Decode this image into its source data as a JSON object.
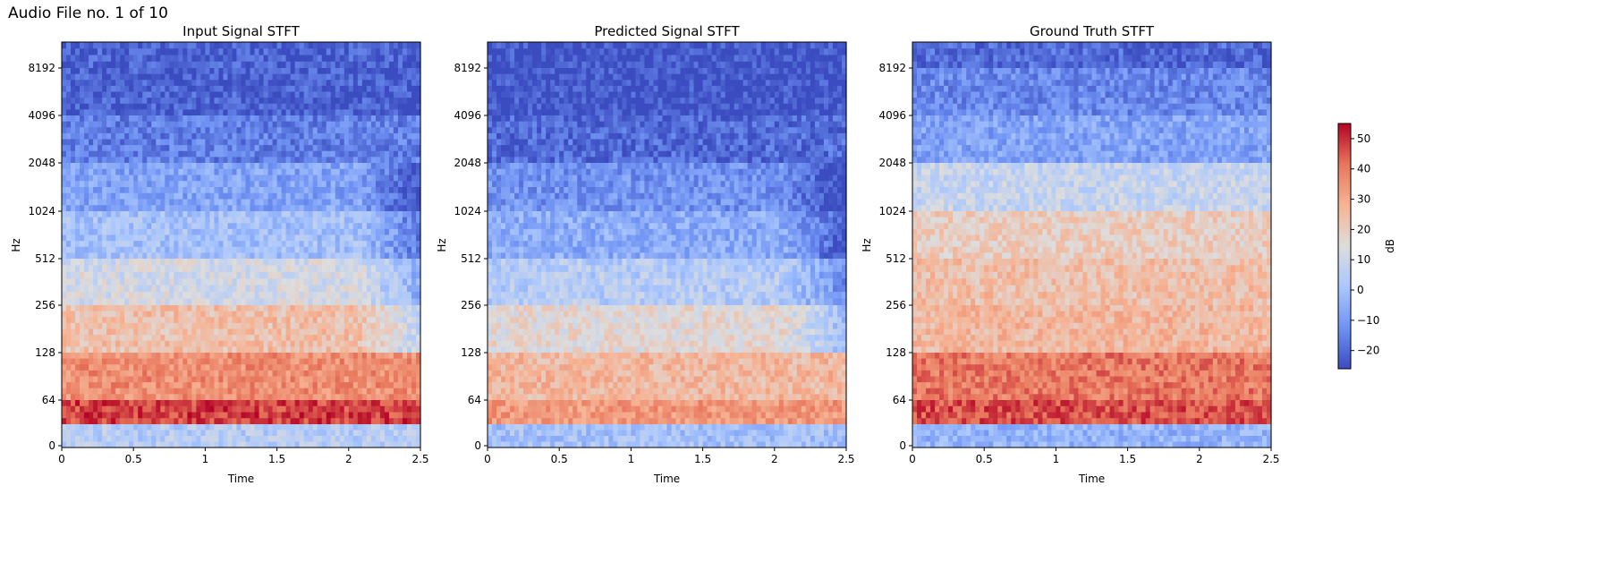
{
  "figure": {
    "suptitle": "Audio File no. 1 of 10"
  },
  "chart_data": [
    {
      "type": "heatmap",
      "title": "Input Signal STFT",
      "xlabel": "Time",
      "ylabel": "Hz",
      "x_ticks": [
        "0",
        "0.5",
        "1",
        "1.5",
        "2",
        "2.5"
      ],
      "x_tick_values": [
        0,
        0.5,
        1,
        1.5,
        2,
        2.5
      ],
      "xlim": [
        0,
        2.5
      ],
      "y_scale": "log (symlog, base 2)",
      "y_ticks": [
        "0",
        "64",
        "128",
        "256",
        "512",
        "1024",
        "2048",
        "4096",
        "8192"
      ],
      "y_tick_values": [
        0,
        64,
        128,
        256,
        512,
        1024,
        2048,
        4096,
        8192
      ],
      "colormap": "coolwarm",
      "bands": [
        {
          "hz": [
            11025,
            8192
          ],
          "db": -22
        },
        {
          "hz": [
            8192,
            4096
          ],
          "db": -22
        },
        {
          "hz": [
            4096,
            2048
          ],
          "db": -16
        },
        {
          "hz": [
            2048,
            1024
          ],
          "db": -8
        },
        {
          "hz": [
            1024,
            512
          ],
          "db": 0
        },
        {
          "hz": [
            512,
            256
          ],
          "db": 12
        },
        {
          "hz": [
            256,
            128
          ],
          "db": 24
        },
        {
          "hz": [
            128,
            64
          ],
          "db": 36
        },
        {
          "hz": [
            64,
            32
          ],
          "db": 48
        },
        {
          "hz": [
            32,
            0
          ],
          "db": 4
        }
      ]
    },
    {
      "type": "heatmap",
      "title": "Predicted Signal STFT",
      "xlabel": "Time",
      "ylabel": "Hz",
      "x_ticks": [
        "0",
        "0.5",
        "1",
        "1.5",
        "2",
        "2.5"
      ],
      "x_tick_values": [
        0,
        0.5,
        1,
        1.5,
        2,
        2.5
      ],
      "xlim": [
        0,
        2.5
      ],
      "y_scale": "log (symlog, base 2)",
      "y_ticks": [
        "0",
        "64",
        "128",
        "256",
        "512",
        "1024",
        "2048",
        "4096",
        "8192"
      ],
      "y_tick_values": [
        0,
        64,
        128,
        256,
        512,
        1024,
        2048,
        4096,
        8192
      ],
      "colormap": "coolwarm",
      "bands": [
        {
          "hz": [
            11025,
            8192
          ],
          "db": -24
        },
        {
          "hz": [
            8192,
            4096
          ],
          "db": -24
        },
        {
          "hz": [
            4096,
            2048
          ],
          "db": -20
        },
        {
          "hz": [
            2048,
            1024
          ],
          "db": -12
        },
        {
          "hz": [
            1024,
            512
          ],
          "db": -6
        },
        {
          "hz": [
            512,
            256
          ],
          "db": 4
        },
        {
          "hz": [
            256,
            128
          ],
          "db": 16
        },
        {
          "hz": [
            128,
            64
          ],
          "db": 26
        },
        {
          "hz": [
            64,
            32
          ],
          "db": 34
        },
        {
          "hz": [
            32,
            0
          ],
          "db": 0
        }
      ]
    },
    {
      "type": "heatmap",
      "title": "Ground Truth STFT",
      "xlabel": "Time",
      "ylabel": "Hz",
      "x_ticks": [
        "0",
        "0.5",
        "1",
        "1.5",
        "2",
        "2.5"
      ],
      "x_tick_values": [
        0,
        0.5,
        1,
        1.5,
        2,
        2.5
      ],
      "xlim": [
        0,
        2.5
      ],
      "y_scale": "log (symlog, base 2)",
      "y_ticks": [
        "0",
        "64",
        "128",
        "256",
        "512",
        "1024",
        "2048",
        "4096",
        "8192"
      ],
      "y_tick_values": [
        0,
        64,
        128,
        256,
        512,
        1024,
        2048,
        4096,
        8192
      ],
      "colormap": "coolwarm",
      "bands": [
        {
          "hz": [
            11025,
            8192
          ],
          "db": -20
        },
        {
          "hz": [
            8192,
            4096
          ],
          "db": -14
        },
        {
          "hz": [
            4096,
            2048
          ],
          "db": -8
        },
        {
          "hz": [
            2048,
            1024
          ],
          "db": 8
        },
        {
          "hz": [
            1024,
            512
          ],
          "db": 20
        },
        {
          "hz": [
            512,
            256
          ],
          "db": 24
        },
        {
          "hz": [
            256,
            128
          ],
          "db": 26
        },
        {
          "hz": [
            128,
            64
          ],
          "db": 40
        },
        {
          "hz": [
            64,
            32
          ],
          "db": 46
        },
        {
          "hz": [
            32,
            0
          ],
          "db": -4
        }
      ]
    }
  ],
  "colorbar": {
    "label": "dB",
    "ticks": [
      "50",
      "40",
      "30",
      "20",
      "10",
      "0",
      "−10",
      "−20"
    ],
    "tick_values": [
      50,
      40,
      30,
      20,
      10,
      0,
      -10,
      -20
    ],
    "vmin": -26,
    "vmax": 55,
    "stops": [
      "#3b4cc0",
      "#6f92f3",
      "#aac7fd",
      "#dddddd",
      "#f6b394",
      "#e8765c",
      "#b40426"
    ]
  }
}
